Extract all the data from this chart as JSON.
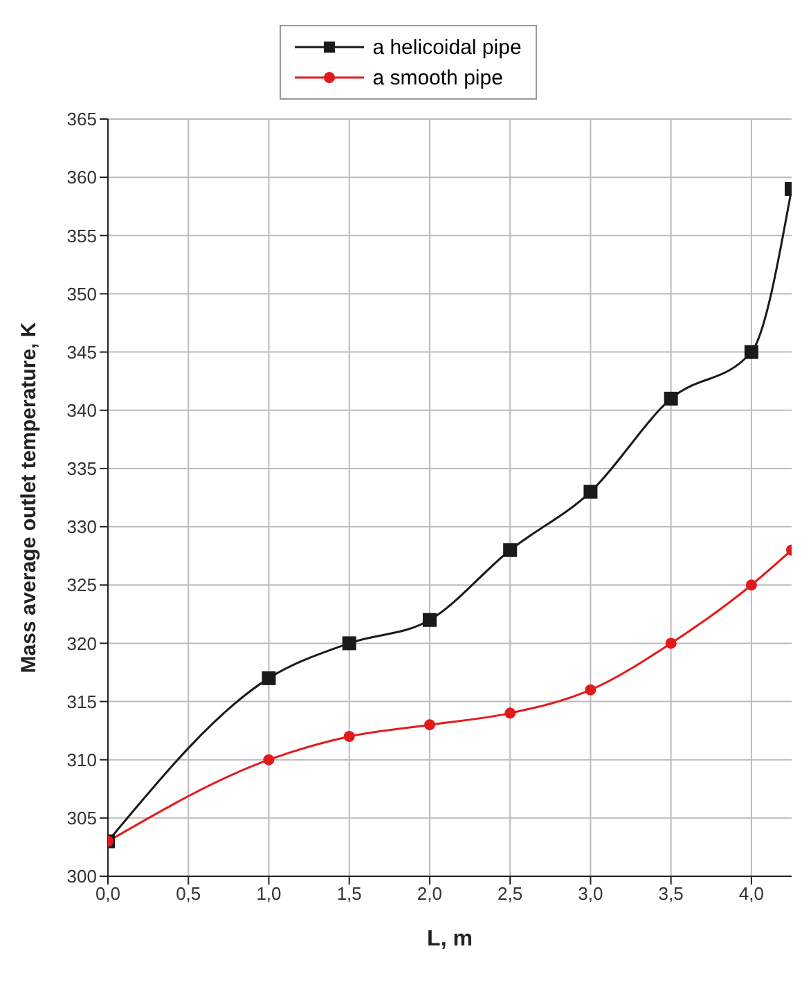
{
  "chart_data": {
    "type": "line",
    "xlabel": "L, m",
    "ylabel": "Mass average outlet temperature, K",
    "x": [
      0,
      1.0,
      1.5,
      2.0,
      2.5,
      3.0,
      3.5,
      4.0,
      4.25
    ],
    "series": [
      {
        "name": "a helicoidal pipe",
        "color": "#1a1a1a",
        "marker": "square",
        "values": [
          303,
          317,
          320,
          322,
          328,
          333,
          341,
          345,
          359
        ]
      },
      {
        "name": "a smooth pipe",
        "color": "#e31a1c",
        "marker": "circle",
        "values": [
          303,
          310,
          312,
          313,
          314,
          316,
          320,
          325,
          328
        ]
      }
    ],
    "xlim": [
      0,
      4.25
    ],
    "xticks": [
      {
        "value": 0,
        "label": "0,0"
      },
      {
        "value": 0.5,
        "label": "0,5"
      },
      {
        "value": 1,
        "label": "1,0"
      },
      {
        "value": 1.5,
        "label": "1,5"
      },
      {
        "value": 2,
        "label": "2,0"
      },
      {
        "value": 2.5,
        "label": "2,5"
      },
      {
        "value": 3,
        "label": "3,0"
      },
      {
        "value": 3.5,
        "label": "3,5"
      },
      {
        "value": 4,
        "label": "4,0"
      }
    ],
    "ylim": [
      300,
      365
    ],
    "yticks": [
      300,
      305,
      310,
      315,
      320,
      325,
      330,
      335,
      340,
      345,
      350,
      355,
      360,
      365
    ],
    "grid": true,
    "legend": "top",
    "line_style": "solid"
  }
}
